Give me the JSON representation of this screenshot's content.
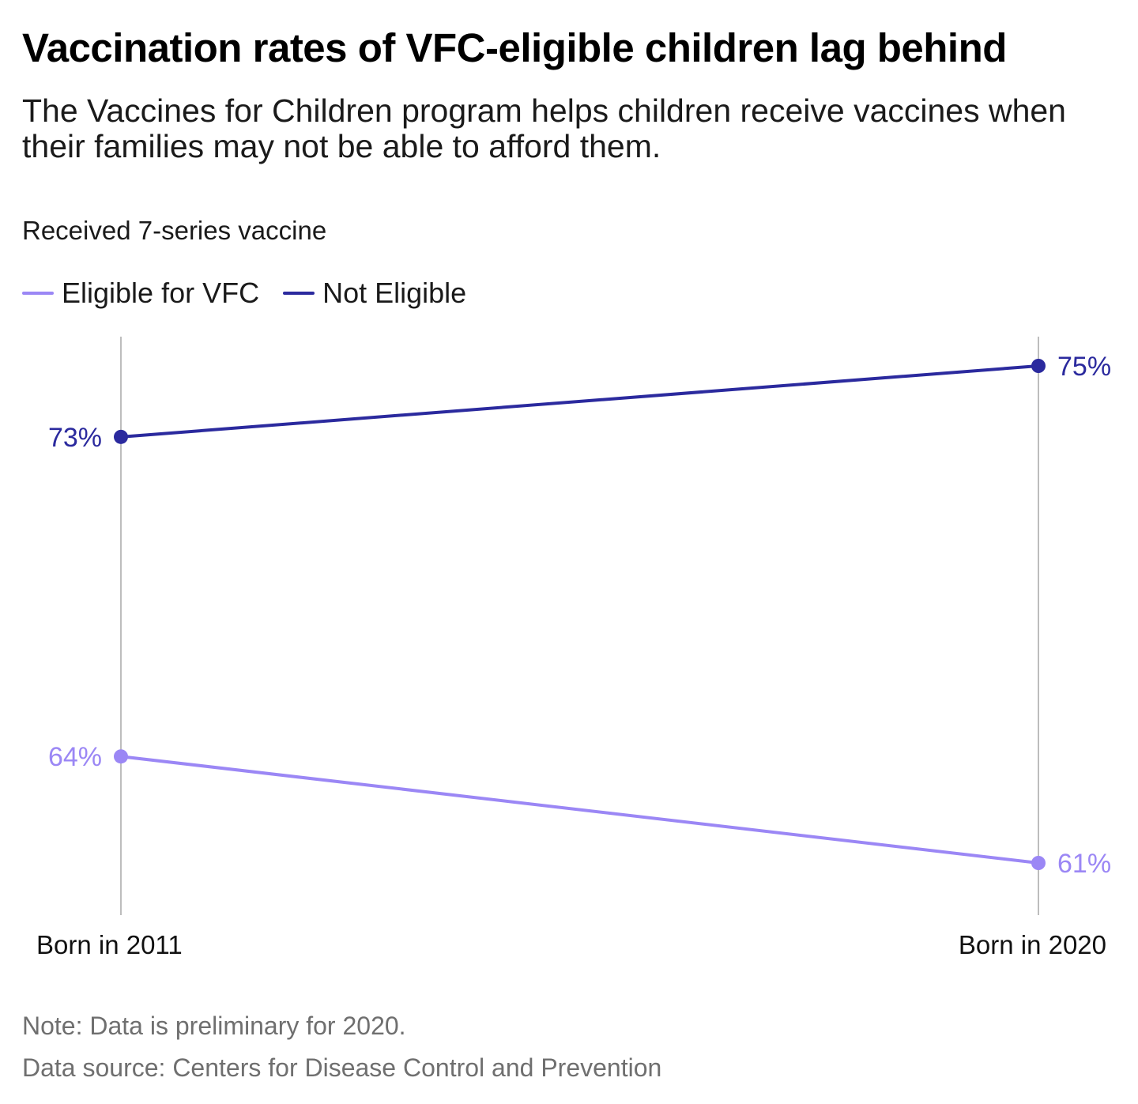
{
  "title": "Vaccination rates of VFC-eligible children lag behind",
  "subtitle": "The Vaccines for Children program helps children receive vaccines when their families may not be able to afford them.",
  "note": "Note: Data is preliminary for 2020.",
  "source": "Data source: Centers for Disease Control and Prevention",
  "chart_data": {
    "type": "line",
    "title": "Vaccination rates of VFC-eligible children lag behind",
    "subtitle": "The Vaccines for Children program helps children receive vaccines when their families may not be able to afford them.",
    "ylabel": "Received 7-series vaccine",
    "xlabel": "",
    "categories": [
      "Born in 2011",
      "Born in 2020"
    ],
    "ylim": [
      59,
      77
    ],
    "grid": "vertical",
    "legend_position": "top-left",
    "series": [
      {
        "name": "Eligible for VFC",
        "values": [
          64,
          61
        ],
        "labels": [
          "64%",
          "61%"
        ],
        "color": "#9b87f5"
      },
      {
        "name": "Not Eligible",
        "values": [
          73,
          75
        ],
        "labels": [
          "73%",
          "75%"
        ],
        "color": "#2b2a9e"
      }
    ]
  }
}
